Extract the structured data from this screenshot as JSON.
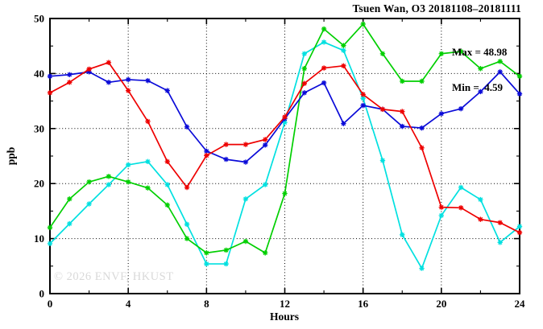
{
  "title": "Tsuen Wan, O3 20181108–20181111",
  "stats": {
    "max_label": "Max = 48.98",
    "min_label": "Min =  4.59"
  },
  "watermark": "© 2026 ENVF, HKUST",
  "chart_data": {
    "type": "line",
    "title": "Tsuen Wan, O3 20181108–20181111",
    "xlabel": "Hours",
    "ylabel": "ppb",
    "xlim": [
      0,
      24
    ],
    "ylim": [
      0,
      50
    ],
    "xticks": [
      0,
      4,
      8,
      12,
      16,
      20,
      24
    ],
    "xminorticks": [
      2,
      6,
      10,
      14,
      18,
      22
    ],
    "yticks": [
      0,
      10,
      20,
      30,
      40,
      50
    ],
    "yminorticks": [
      5,
      15,
      25,
      35,
      45
    ],
    "grid": "black dotted lines at major ticks, frame border with inward ticks on all sides",
    "legend_position": "none",
    "marker": "asterisk",
    "annotations": {
      "max": 48.98,
      "min": 4.59
    },
    "x": [
      0,
      1,
      2,
      3,
      4,
      5,
      6,
      7,
      8,
      9,
      10,
      11,
      12,
      13,
      14,
      15,
      16,
      17,
      18,
      19,
      20,
      21,
      22,
      23,
      24
    ],
    "series": [
      {
        "name": "cyan-series",
        "color": "#00e0e0",
        "values": [
          9.1,
          12.7,
          16.3,
          19.8,
          23.4,
          24.0,
          19.8,
          12.6,
          5.4,
          5.4,
          17.2,
          19.8,
          31.1,
          43.6,
          45.7,
          44.2,
          35.5,
          24.2,
          10.7,
          4.59,
          14.2,
          19.3,
          17.1,
          9.3,
          12.2
        ]
      },
      {
        "name": "green-series",
        "color": "#00cf00",
        "values": [
          12.0,
          17.2,
          20.3,
          21.3,
          20.3,
          19.2,
          16.1,
          10.0,
          7.4,
          7.9,
          9.5,
          7.4,
          18.2,
          40.9,
          48.1,
          45.1,
          48.98,
          43.6,
          38.6,
          38.6,
          43.6,
          44.0,
          40.9,
          42.2,
          39.5
        ]
      },
      {
        "name": "blue-series",
        "color": "#0a0ad8",
        "values": [
          39.5,
          39.8,
          40.3,
          38.4,
          38.9,
          38.7,
          36.9,
          30.3,
          25.9,
          24.4,
          23.9,
          27.0,
          31.8,
          36.5,
          38.3,
          30.9,
          34.2,
          33.5,
          30.4,
          30.1,
          32.7,
          33.6,
          36.7,
          40.3,
          36.3
        ]
      },
      {
        "name": "red-series",
        "color": "#ee0000",
        "values": [
          36.5,
          38.4,
          40.8,
          42.0,
          36.9,
          31.3,
          24.0,
          19.3,
          25.1,
          27.1,
          27.1,
          28.0,
          32.1,
          38.2,
          41.0,
          41.4,
          36.2,
          33.5,
          33.1,
          26.5,
          15.7,
          15.6,
          13.5,
          12.9,
          11.1
        ]
      }
    ]
  }
}
